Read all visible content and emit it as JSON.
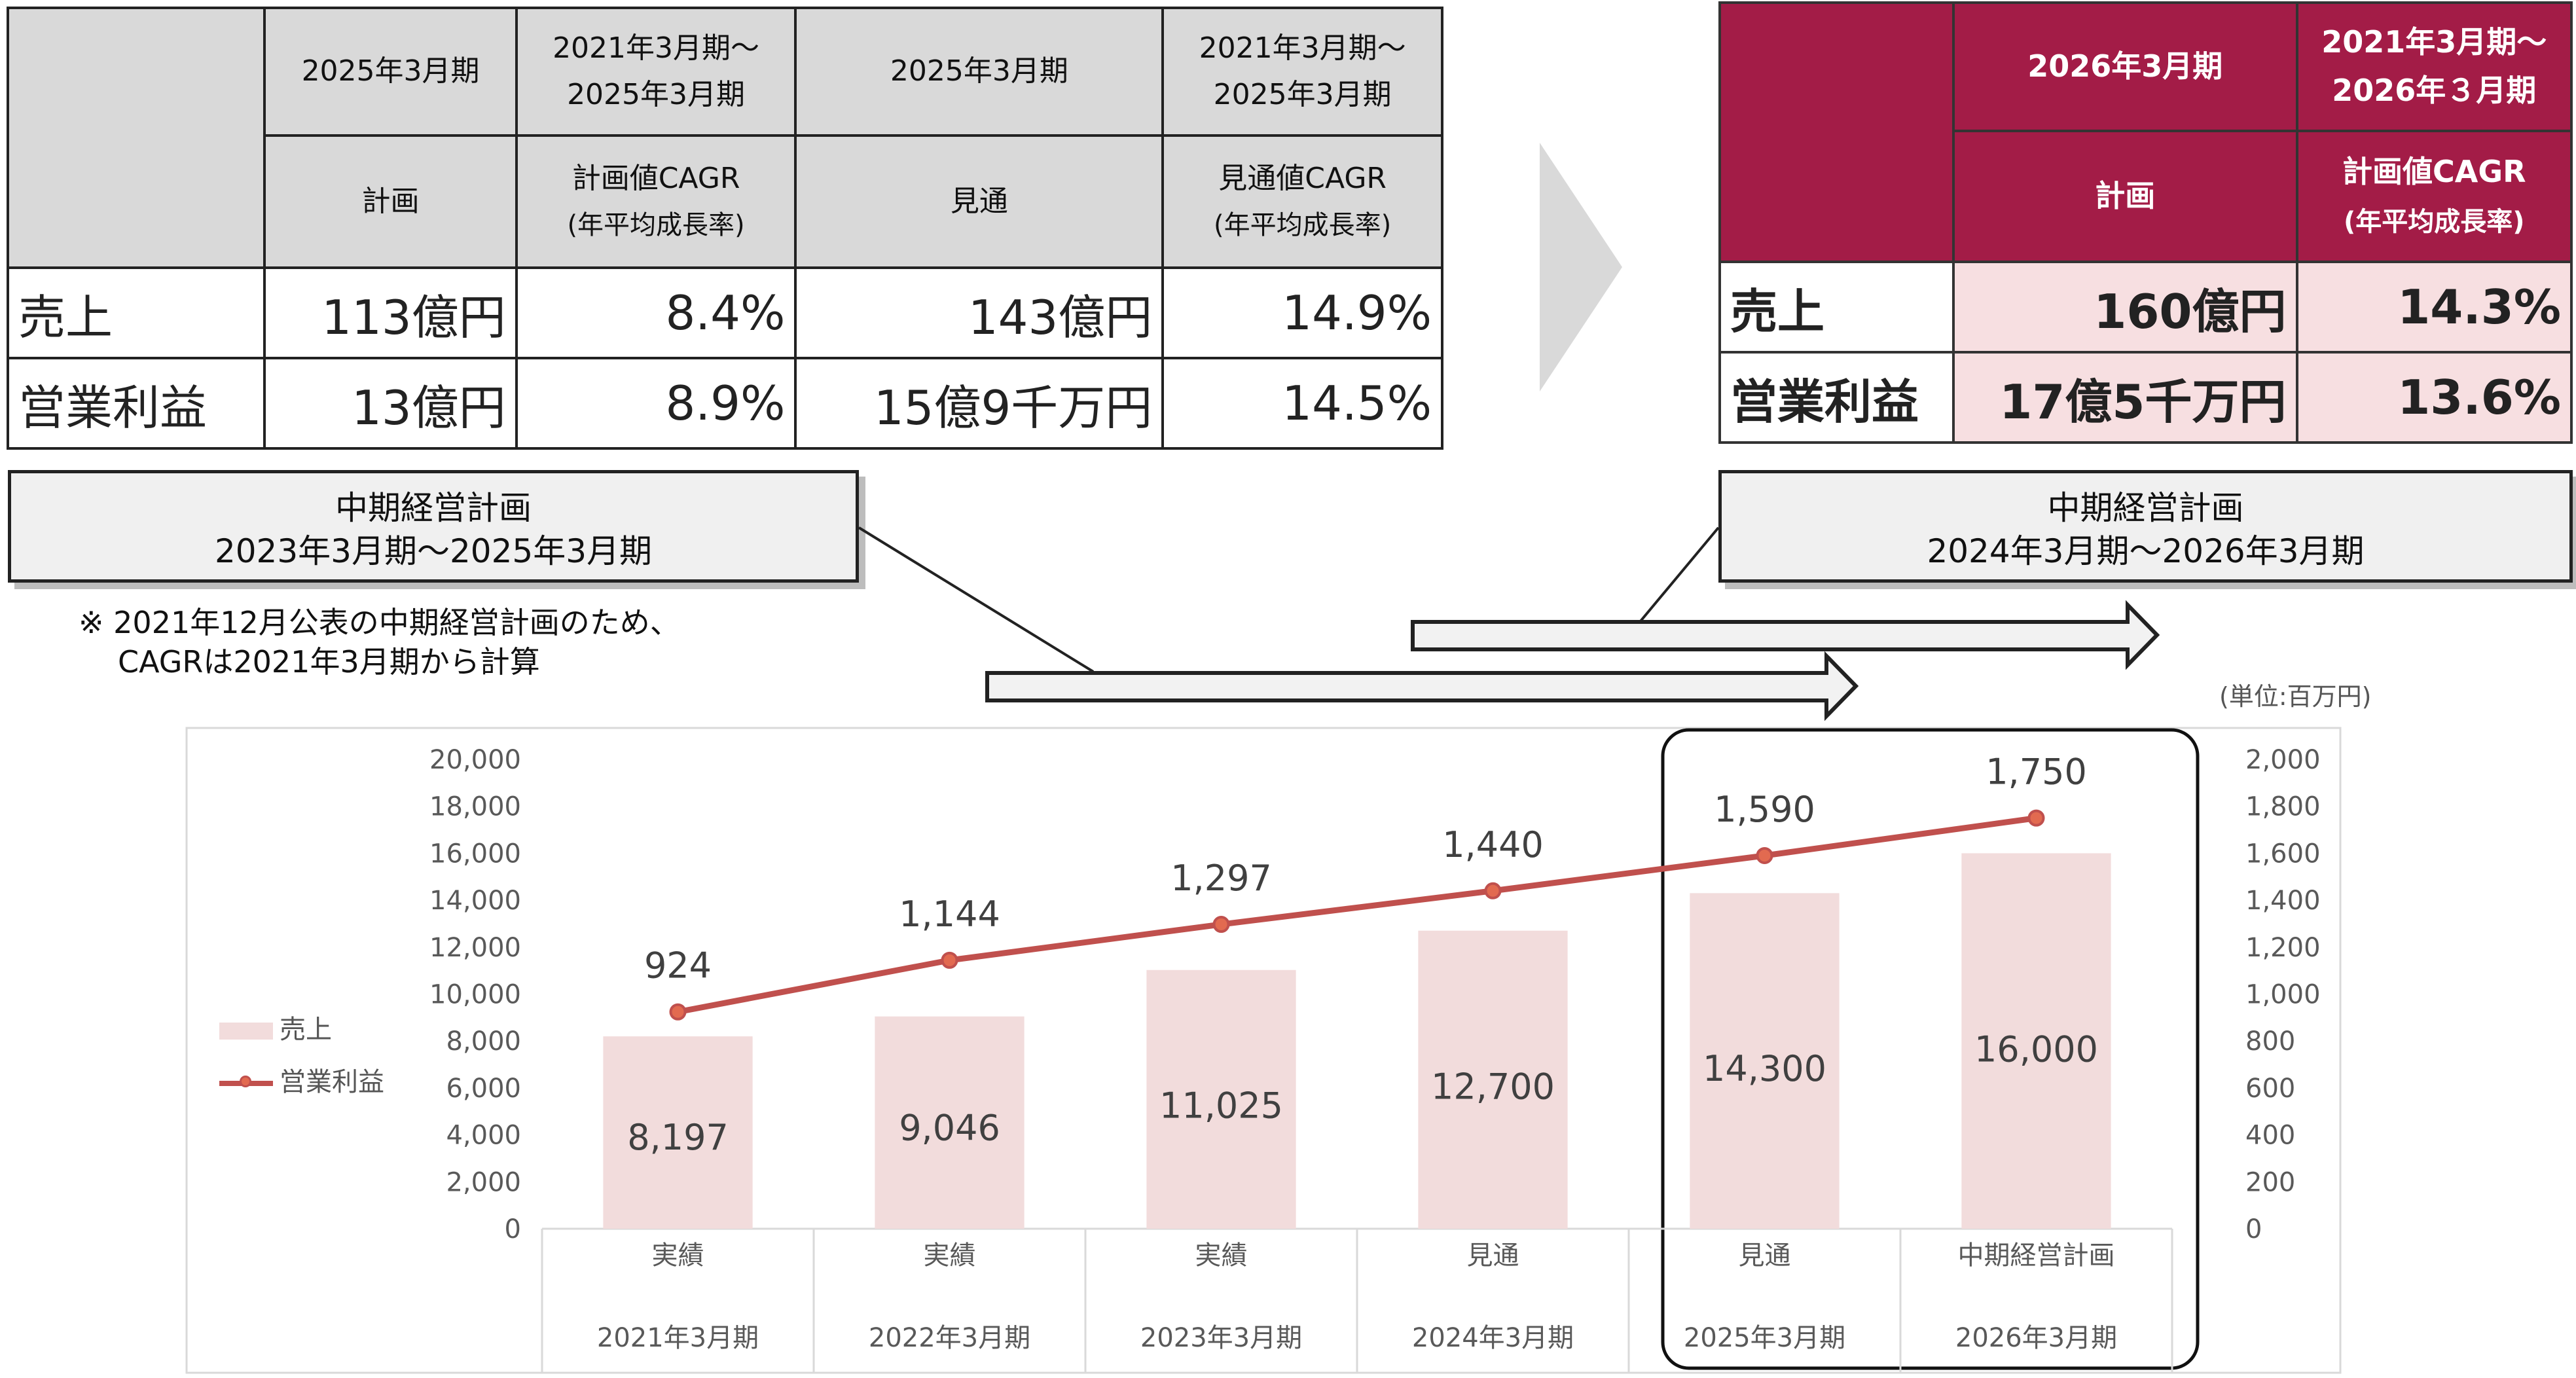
{
  "left_table": {
    "header_row1": [
      "2025年3月期",
      "2021年3月期～",
      "2025年3月期",
      "2025年3月期",
      "2021年3月期～",
      "2025年3月期"
    ],
    "header_row2": [
      "計画",
      "計画値CAGR",
      "(年平均成長率)",
      "見通",
      "見通値CAGR",
      "(年平均成長率)"
    ],
    "rows": [
      {
        "label": "売上",
        "plan": "113億円",
        "plan_cagr": "8.4%",
        "forecast": "143億円",
        "forecast_cagr": "14.9%"
      },
      {
        "label": "営業利益",
        "plan": "13億円",
        "plan_cagr": "8.9%",
        "forecast": "15億9千万円",
        "forecast_cagr": "14.5%"
      }
    ]
  },
  "right_table": {
    "header_row1": [
      "2026年3月期",
      "2021年3月期～",
      "2026年３月期"
    ],
    "header_row2": [
      "計画",
      "計画値CAGR",
      "(年平均成長率)"
    ],
    "rows": [
      {
        "label": "売上",
        "plan": "160億円",
        "plan_cagr": "14.3%"
      },
      {
        "label": "営業利益",
        "plan": "17億5千万円",
        "plan_cagr": "13.6%"
      }
    ]
  },
  "plan_left": {
    "line1": "中期経営計画",
    "line2": "2023年3月期～2025年3月期"
  },
  "plan_right": {
    "line1": "中期経営計画",
    "line2": "2024年3月期～2026年3月期"
  },
  "note": {
    "line1": "※ 2021年12月公表の中期経営計画のため、",
    "line2": "CAGRは2021年3月期から計算"
  },
  "unit": "(単位:百万円)",
  "colors": {
    "bar": "#f2dcdc",
    "line": "#c0504d",
    "marker": "#e26a50",
    "header_accent": "#a31c47",
    "header_accent_light": "#f7dfe1"
  },
  "chart_data": {
    "type": "bar",
    "categories": [
      "2021年3月期",
      "2022年3月期",
      "2023年3月期",
      "2024年3月期",
      "2025年3月期",
      "2026年3月期"
    ],
    "category_labels": [
      "実績",
      "実績",
      "実績",
      "見通",
      "見通",
      "中期経営計画"
    ],
    "series": [
      {
        "name": "売上",
        "type": "bar",
        "axis": "left",
        "values": [
          8197,
          9046,
          11025,
          12700,
          14300,
          16000
        ],
        "labels": [
          "8,197",
          "9,046",
          "11,025",
          "12,700",
          "14,300",
          "16,000"
        ]
      },
      {
        "name": "営業利益",
        "type": "line",
        "axis": "right",
        "values": [
          924,
          1144,
          1297,
          1440,
          1590,
          1750
        ],
        "labels": [
          "924",
          "1,144",
          "1,297",
          "1,440",
          "1,590",
          "1,750"
        ]
      }
    ],
    "y_left": {
      "min": 0,
      "max": 20000,
      "step": 2000,
      "ticks": [
        "0",
        "2,000",
        "4,000",
        "6,000",
        "8,000",
        "10,000",
        "12,000",
        "14,000",
        "16,000",
        "18,000",
        "20,000"
      ]
    },
    "y_right": {
      "min": 0,
      "max": 2000,
      "step": 200,
      "ticks": [
        "0",
        "200",
        "400",
        "600",
        "800",
        "1,000",
        "1,200",
        "1,400",
        "1,600",
        "1,800",
        "2,000"
      ]
    },
    "grid": false,
    "legend_position": "left"
  }
}
